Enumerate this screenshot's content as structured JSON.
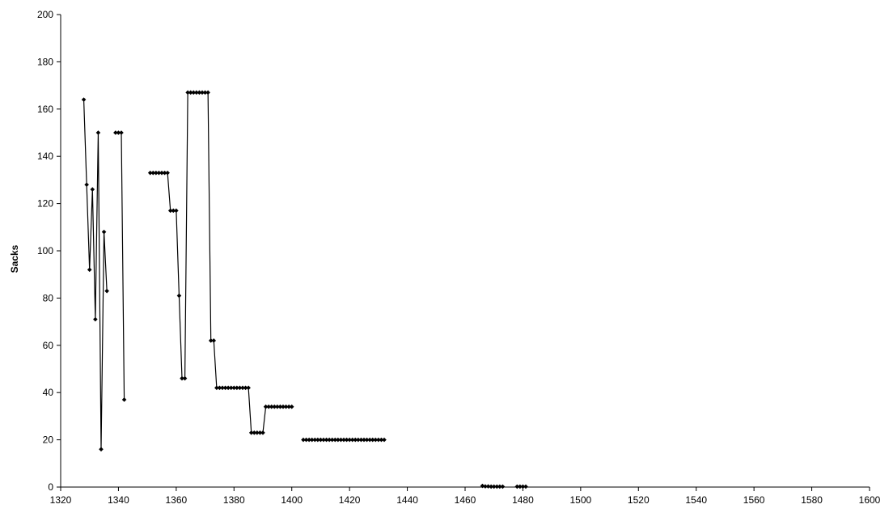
{
  "chart_data": {
    "type": "line",
    "title": "",
    "xlabel": "",
    "ylabel": "Sacks",
    "xlim": [
      1320,
      1600
    ],
    "ylim": [
      0,
      200
    ],
    "x_ticks": [
      1320,
      1340,
      1360,
      1380,
      1400,
      1420,
      1440,
      1460,
      1480,
      1500,
      1520,
      1540,
      1560,
      1580,
      1600
    ],
    "y_ticks": [
      0,
      20,
      40,
      60,
      80,
      100,
      120,
      140,
      160,
      180,
      200
    ],
    "grid": false,
    "legend": "none",
    "color": "#000000",
    "marker": "diamond",
    "segments": [
      [
        [
          1328,
          164
        ],
        [
          1329,
          128
        ],
        [
          1330,
          92
        ],
        [
          1331,
          126
        ],
        [
          1332,
          71
        ],
        [
          1333,
          150
        ],
        [
          1334,
          16
        ],
        [
          1335,
          108
        ],
        [
          1336,
          83
        ]
      ],
      [
        [
          1339,
          150
        ],
        [
          1340,
          150
        ],
        [
          1341,
          150
        ],
        [
          1342,
          37
        ]
      ],
      [
        [
          1351,
          133
        ],
        [
          1352,
          133
        ],
        [
          1353,
          133
        ],
        [
          1354,
          133
        ],
        [
          1355,
          133
        ],
        [
          1356,
          133
        ],
        [
          1357,
          133
        ],
        [
          1358,
          117
        ],
        [
          1359,
          117
        ],
        [
          1360,
          117
        ],
        [
          1361,
          81
        ],
        [
          1362,
          46
        ],
        [
          1363,
          46
        ],
        [
          1364,
          167
        ],
        [
          1365,
          167
        ],
        [
          1366,
          167
        ],
        [
          1367,
          167
        ],
        [
          1368,
          167
        ],
        [
          1369,
          167
        ],
        [
          1370,
          167
        ],
        [
          1371,
          167
        ],
        [
          1372,
          62
        ],
        [
          1373,
          62
        ],
        [
          1374,
          42
        ],
        [
          1375,
          42
        ],
        [
          1376,
          42
        ],
        [
          1377,
          42
        ],
        [
          1378,
          42
        ],
        [
          1379,
          42
        ],
        [
          1380,
          42
        ],
        [
          1381,
          42
        ],
        [
          1382,
          42
        ],
        [
          1383,
          42
        ],
        [
          1384,
          42
        ],
        [
          1385,
          42
        ],
        [
          1386,
          23
        ],
        [
          1387,
          23
        ],
        [
          1388,
          23
        ],
        [
          1389,
          23
        ],
        [
          1390,
          23
        ],
        [
          1391,
          34
        ],
        [
          1392,
          34
        ],
        [
          1393,
          34
        ],
        [
          1394,
          34
        ],
        [
          1395,
          34
        ],
        [
          1396,
          34
        ],
        [
          1397,
          34
        ],
        [
          1398,
          34
        ],
        [
          1399,
          34
        ],
        [
          1400,
          34
        ]
      ],
      [
        [
          1404,
          20
        ],
        [
          1405,
          20
        ],
        [
          1406,
          20
        ],
        [
          1407,
          20
        ],
        [
          1408,
          20
        ],
        [
          1409,
          20
        ],
        [
          1410,
          20
        ],
        [
          1411,
          20
        ],
        [
          1412,
          20
        ],
        [
          1413,
          20
        ],
        [
          1414,
          20
        ],
        [
          1415,
          20
        ],
        [
          1416,
          20
        ],
        [
          1417,
          20
        ],
        [
          1418,
          20
        ],
        [
          1419,
          20
        ],
        [
          1420,
          20
        ],
        [
          1421,
          20
        ],
        [
          1422,
          20
        ],
        [
          1423,
          20
        ],
        [
          1424,
          20
        ],
        [
          1425,
          20
        ],
        [
          1426,
          20
        ],
        [
          1427,
          20
        ],
        [
          1428,
          20
        ],
        [
          1429,
          20
        ],
        [
          1430,
          20
        ],
        [
          1431,
          20
        ],
        [
          1432,
          20
        ]
      ],
      [
        [
          1466,
          0.5
        ],
        [
          1467,
          0.3
        ],
        [
          1468,
          0.3
        ],
        [
          1469,
          0.2
        ],
        [
          1470,
          0.2
        ],
        [
          1471,
          0.2
        ],
        [
          1472,
          0.2
        ],
        [
          1473,
          0.2
        ]
      ],
      [
        [
          1478,
          0.2
        ],
        [
          1479,
          0.2
        ],
        [
          1480,
          0.2
        ],
        [
          1481,
          0.2
        ]
      ]
    ]
  }
}
